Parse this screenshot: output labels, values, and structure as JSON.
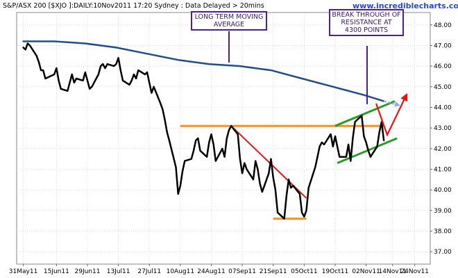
{
  "header": {
    "title": "S&P/ASX 200 [$XJO ]:DAILY:10Nov2011 17:20 Sydney : Data Delayed > 20mins",
    "brand": "www.incrediblecharts.com"
  },
  "annotations": {
    "moving_average_note": [
      "LONG TERM MOVING",
      "AVERAGE"
    ],
    "breakout_note": [
      "BREAK THROUGH OF",
      "RESISTANCE AT",
      "4300 POINTS"
    ]
  },
  "colors": {
    "price": "#000000",
    "moving_average": "#1f4e8c",
    "resistance": "#f5921e",
    "downtrend": "#ee1111",
    "channel": "#22a022",
    "note_border": "#4b1e9a",
    "projection": "#9da7e8",
    "grid": "#bfc6d9"
  },
  "chart_data": {
    "type": "line",
    "title": "S&P/ASX 200 [$XJO ]:DAILY:10Nov2011 17:20 Sydney : Data Delayed > 20mins",
    "xlabel": "",
    "ylabel": "",
    "ylim": [
      36.4,
      48.6
    ],
    "grid": true,
    "x_tick_labels": [
      "31May11",
      "15Jun11",
      "29Jun11",
      "13Jul11",
      "27Jul11",
      "10Aug11",
      "24Aug11",
      "07Sep11",
      "21Sep11",
      "05Oct11",
      "19Oct11",
      "02Nov11",
      "14Nov11",
      "24Nov11"
    ],
    "y_tick_labels": [
      "37.00",
      "38.00",
      "39.00",
      "40.00",
      "41.00",
      "42.00",
      "43.00",
      "44.00",
      "45.00",
      "46.00",
      "47.00",
      "48.00"
    ],
    "series": [
      {
        "name": "",
        "points": [
          [
            "31May11",
            46.9
          ],
          [
            "01Jun11",
            46.8
          ],
          [
            "02Jun11",
            47.1
          ],
          [
            "03Jun11",
            47.0
          ],
          [
            "06Jun11",
            46.5
          ],
          [
            "07Jun11",
            46.2
          ],
          [
            "08Jun11",
            45.8
          ],
          [
            "09Jun11",
            45.8
          ],
          [
            "10Jun11",
            45.4
          ],
          [
            "14Jun11",
            45.6
          ],
          [
            "15Jun11",
            45.9
          ],
          [
            "16Jun11",
            45.3
          ],
          [
            "17Jun11",
            44.9
          ],
          [
            "20Jun11",
            44.8
          ],
          [
            "21Jun11",
            45.2
          ],
          [
            "22Jun11",
            45.6
          ],
          [
            "23Jun11",
            45.2
          ],
          [
            "24Jun11",
            45.4
          ],
          [
            "27Jun11",
            45.3
          ],
          [
            "28Jun11",
            45.7
          ],
          [
            "29Jun11",
            45.3
          ],
          [
            "30Jun11",
            44.9
          ],
          [
            "01Jul11",
            45.0
          ],
          [
            "04Jul11",
            45.6
          ],
          [
            "05Jul11",
            46.0
          ],
          [
            "06Jul11",
            46.1
          ],
          [
            "07Jul11",
            45.9
          ],
          [
            "08Jul11",
            46.1
          ],
          [
            "11Jul11",
            46.0
          ],
          [
            "12Jul11",
            46.1
          ],
          [
            "13Jul11",
            46.4
          ],
          [
            "14Jul11",
            45.8
          ],
          [
            "15Jul11",
            45.3
          ],
          [
            "18Jul11",
            45.1
          ],
          [
            "19Jul11",
            45.3
          ],
          [
            "20Jul11",
            45.6
          ],
          [
            "21Jul11",
            45.4
          ],
          [
            "22Jul11",
            45.8
          ],
          [
            "25Jul11",
            45.6
          ],
          [
            "26Jul11",
            45.7
          ],
          [
            "27Jul11",
            45.2
          ],
          [
            "28Jul11",
            44.7
          ],
          [
            "29Jul11",
            45.0
          ],
          [
            "01Aug11",
            44.2
          ],
          [
            "02Aug11",
            43.9
          ],
          [
            "03Aug11",
            43.4
          ],
          [
            "04Aug11",
            42.8
          ],
          [
            "05Aug11",
            42.4
          ],
          [
            "08Aug11",
            41.1
          ],
          [
            "09Aug11",
            39.8
          ],
          [
            "10Aug11",
            40.2
          ],
          [
            "11Aug11",
            40.9
          ],
          [
            "12Aug11",
            41.4
          ],
          [
            "15Aug11",
            41.5
          ],
          [
            "16Aug11",
            41.9
          ],
          [
            "17Aug11",
            42.4
          ],
          [
            "18Aug11",
            42.5
          ],
          [
            "19Aug11",
            41.9
          ],
          [
            "22Aug11",
            41.6
          ],
          [
            "23Aug11",
            42.3
          ],
          [
            "24Aug11",
            42.7
          ],
          [
            "25Aug11",
            42.2
          ],
          [
            "26Aug11",
            41.4
          ],
          [
            "29Aug11",
            42.0
          ],
          [
            "30Aug11",
            41.6
          ],
          [
            "31Aug11",
            42.5
          ],
          [
            "01Sep11",
            42.9
          ],
          [
            "02Sep11",
            43.1
          ],
          [
            "05Sep11",
            42.7
          ],
          [
            "06Sep11",
            41.5
          ],
          [
            "07Sep11",
            40.8
          ],
          [
            "08Sep11",
            41.3
          ],
          [
            "09Sep11",
            41.0
          ],
          [
            "12Sep11",
            40.5
          ],
          [
            "13Sep11",
            41.4
          ],
          [
            "14Sep11",
            41.0
          ],
          [
            "15Sep11",
            40.3
          ],
          [
            "16Sep11",
            39.9
          ],
          [
            "19Sep11",
            40.8
          ],
          [
            "20Sep11",
            41.5
          ],
          [
            "21Sep11",
            40.6
          ],
          [
            "22Sep11",
            40.0
          ],
          [
            "23Sep11",
            38.9
          ],
          [
            "26Sep11",
            38.6
          ],
          [
            "27Sep11",
            39.7
          ],
          [
            "28Sep11",
            40.5
          ],
          [
            "29Sep11",
            40.1
          ],
          [
            "30Sep11",
            40.2
          ],
          [
            "03Oct11",
            39.8
          ],
          [
            "04Oct11",
            38.9
          ],
          [
            "05Oct11",
            38.7
          ],
          [
            "06Oct11",
            39.0
          ],
          [
            "07Oct11",
            40.1
          ],
          [
            "10Oct11",
            41.1
          ],
          [
            "11Oct11",
            41.6
          ],
          [
            "12Oct11",
            42.1
          ],
          [
            "13Oct11",
            42.3
          ],
          [
            "14Oct11",
            42.2
          ],
          [
            "17Oct11",
            42.7
          ],
          [
            "18Oct11",
            42.1
          ],
          [
            "19Oct11",
            42.6
          ],
          [
            "20Oct11",
            42.1
          ],
          [
            "21Oct11",
            41.6
          ],
          [
            "24Oct11",
            41.6
          ],
          [
            "25Oct11",
            42.2
          ],
          [
            "26Oct11",
            41.4
          ],
          [
            "27Oct11",
            42.5
          ],
          [
            "28Oct11",
            43.3
          ],
          [
            "31Oct11",
            43.6
          ],
          [
            "01Nov11",
            42.6
          ],
          [
            "02Nov11",
            42.3
          ],
          [
            "03Nov11",
            41.9
          ],
          [
            "04Nov11",
            41.6
          ],
          [
            "07Nov11",
            42.1
          ],
          [
            "08Nov11",
            42.8
          ],
          [
            "09Nov11",
            43.3
          ],
          [
            "10Nov11",
            42.4
          ]
        ]
      },
      {
        "name": "",
        "points": [
          [
            "31May11",
            47.2
          ],
          [
            "14Jun11",
            47.2
          ],
          [
            "28Jun11",
            47.1
          ],
          [
            "12Jul11",
            46.9
          ],
          [
            "26Jul11",
            46.6
          ],
          [
            "09Aug11",
            46.3
          ],
          [
            "23Aug11",
            46.1
          ],
          [
            "06Sep11",
            46.0
          ],
          [
            "20Sep11",
            45.8
          ],
          [
            "04Oct11",
            45.4
          ],
          [
            "18Oct11",
            45.0
          ],
          [
            "01Nov11",
            44.6
          ],
          [
            "10Nov11",
            44.3
          ]
        ]
      }
    ],
    "overlays": {
      "resistance": {
        "y": 43.1,
        "from": "10Aug11",
        "to": "10Nov11"
      },
      "support": {
        "y": 38.6,
        "from": "21Sep11",
        "to": "06Oct11"
      },
      "downtrend": {
        "from": [
          "02Sep11",
          43.1
        ],
        "to": [
          "06Oct11",
          39.6
        ]
      },
      "channel_upper": {
        "from": [
          "19Oct11",
          43.1
        ],
        "to": [
          "15Nov11",
          44.3
        ]
      },
      "channel_lower": {
        "from": [
          "20Oct11",
          41.3
        ],
        "to": [
          "16Nov11",
          42.5
        ]
      },
      "projection": {
        "from": [
          "10Nov11",
          44.3
        ],
        "to": [
          "17Nov11",
          44.1
        ]
      }
    }
  }
}
